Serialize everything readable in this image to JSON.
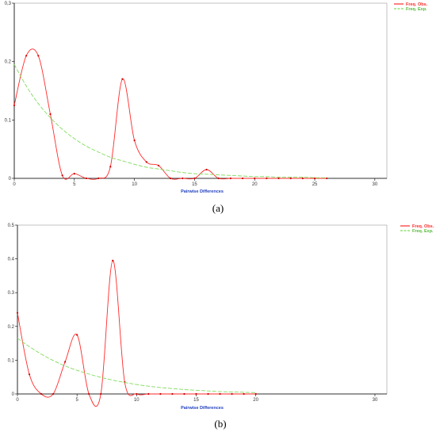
{
  "chart_data": [
    {
      "panel_label": "(a)",
      "type": "line",
      "xlabel": "Pairwise Differences",
      "ylabel": "",
      "xlim": [
        0,
        31
      ],
      "ylim": [
        0,
        0.3
      ],
      "xticks": [
        "0",
        "5",
        "10",
        "15",
        "20",
        "25",
        "30"
      ],
      "yticks": [
        "0",
        "0.1",
        "0.2",
        "0,3"
      ],
      "grid": false,
      "legend_position": "top-right",
      "series": [
        {
          "name": "Freq. Obs.",
          "color": "#ff2a2a",
          "style": "solid-with-points",
          "x": [
            0,
            1,
            2,
            3,
            4,
            5,
            6,
            7,
            8,
            9,
            10,
            11,
            12,
            13,
            14,
            15,
            16,
            17,
            18,
            19,
            20,
            21,
            22,
            23,
            24,
            25,
            26
          ],
          "y": [
            0.125,
            0.21,
            0.21,
            0.11,
            0.005,
            0.008,
            0.0,
            0.0,
            0.02,
            0.17,
            0.065,
            0.028,
            0.022,
            0.0,
            0.0,
            0.0,
            0.015,
            0.0,
            0.0,
            0.0,
            0.0,
            0.0,
            0.0,
            0.0,
            0.0,
            0.0,
            0.0
          ]
        },
        {
          "name": "Freq. Exp.",
          "color": "#7fdc5a",
          "style": "dashed",
          "x": [
            0,
            1,
            2,
            3,
            4,
            5,
            6,
            7,
            8,
            9,
            10,
            11,
            12,
            13,
            14,
            15,
            16,
            17,
            18,
            19,
            20,
            21,
            22,
            23,
            24,
            25,
            26
          ],
          "y": [
            0.195,
            0.158,
            0.128,
            0.104,
            0.084,
            0.068,
            0.055,
            0.045,
            0.036,
            0.03,
            0.024,
            0.019,
            0.016,
            0.013,
            0.01,
            0.008,
            0.007,
            0.006,
            0.005,
            0.004,
            0.003,
            0.003,
            0.002,
            0.002,
            0.002,
            0.001,
            0.001
          ]
        }
      ]
    },
    {
      "panel_label": "(b)",
      "type": "line",
      "xlabel": "Pairwise Differences",
      "ylabel": "",
      "xlim": [
        0,
        31
      ],
      "ylim": [
        0,
        0.5
      ],
      "xticks": [
        "0",
        "5",
        "10",
        "15",
        "20",
        "30"
      ],
      "yticks": [
        "0",
        "0.1",
        "0.2",
        "0.3",
        "0.4",
        "0.5"
      ],
      "grid": false,
      "legend_position": "top-right",
      "series": [
        {
          "name": "Freq. Obs.",
          "color": "#ff2a2a",
          "style": "solid-with-points",
          "x": [
            0,
            1,
            2,
            3,
            4,
            5,
            6,
            7,
            8,
            9,
            10,
            11,
            12,
            13,
            14,
            15,
            16,
            17,
            18,
            19,
            20
          ],
          "y": [
            0.24,
            0.058,
            0.0,
            0.0,
            0.095,
            0.175,
            0.0,
            0.0,
            0.395,
            0.035,
            0.0,
            0.0,
            0.0,
            0.0,
            0.0,
            0.0,
            0.0,
            0.0,
            0.0,
            0.0,
            0.0
          ]
        },
        {
          "name": "Freq. Exp.",
          "color": "#7fdc5a",
          "style": "dashed",
          "x": [
            0,
            1,
            2,
            3,
            4,
            5,
            6,
            7,
            8,
            9,
            10,
            11,
            12,
            13,
            14,
            15,
            16,
            17,
            18,
            19,
            20
          ],
          "y": [
            0.165,
            0.14,
            0.118,
            0.099,
            0.083,
            0.07,
            0.059,
            0.049,
            0.041,
            0.034,
            0.028,
            0.023,
            0.019,
            0.016,
            0.013,
            0.011,
            0.009,
            0.007,
            0.006,
            0.005,
            0.004
          ]
        }
      ]
    }
  ]
}
